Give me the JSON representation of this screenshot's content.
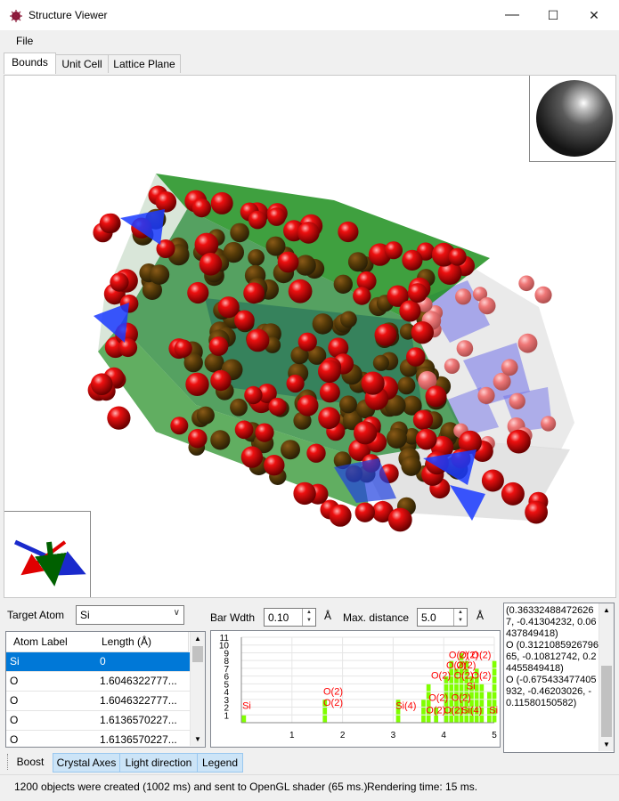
{
  "window": {
    "title": "Structure Viewer",
    "controls": {
      "minimize": "—",
      "maximize": "☐",
      "close": "✕"
    }
  },
  "menu": {
    "file": "File"
  },
  "tabs": [
    {
      "label": "Bounds",
      "active": true
    },
    {
      "label": "Unit Cell",
      "active": false
    },
    {
      "label": "Lattice Plane",
      "active": false
    }
  ],
  "controls": {
    "target_atom_label": "Target Atom",
    "target_atom_value": "Si",
    "bar_width_label": "Bar Wdth",
    "bar_width_value": "0.10",
    "bar_width_unit": "Å",
    "max_distance_label": "Max. distance",
    "max_distance_value": "5.0",
    "max_distance_unit": "Å"
  },
  "table": {
    "columns": [
      "Atom Label",
      "Length (Å)"
    ],
    "rows": [
      {
        "label": "Si",
        "length": "0",
        "selected": true
      },
      {
        "label": "O",
        "length": "1.6046322777...",
        "selected": false
      },
      {
        "label": "O",
        "length": "1.6046322777...",
        "selected": false
      },
      {
        "label": "O",
        "length": "1.6136570227...",
        "selected": false
      },
      {
        "label": "O",
        "length": "1.6136570227...",
        "selected": false
      }
    ]
  },
  "histogram": {
    "y_ticks": [
      "1",
      "2",
      "3",
      "4",
      "5",
      "6",
      "7",
      "8",
      "9",
      "10",
      "11"
    ],
    "x_ticks": [
      "1",
      "2",
      "3",
      "4",
      "5"
    ],
    "bar_color": "#80ff00",
    "label_color": "#ff0000",
    "labels": [
      {
        "text": "Si"
      },
      {
        "text": "O(2)"
      },
      {
        "text": "O(2)"
      },
      {
        "text": "Si(4)"
      },
      {
        "text": "O(2)"
      },
      {
        "text": "O(2)"
      },
      {
        "text": "O(2)"
      },
      {
        "text": "O(2)"
      },
      {
        "text": "O(2)"
      },
      {
        "text": "O(2)"
      },
      {
        "text": "O(2)"
      },
      {
        "text": "O(2)"
      },
      {
        "text": "O(2)"
      },
      {
        "text": "O(2)"
      },
      {
        "text": "Si(4)"
      },
      {
        "text": "Si"
      },
      {
        "text": "O(2)"
      },
      {
        "text": "O(2)"
      },
      {
        "text": "Si"
      }
    ]
  },
  "coordinates_text": "(0.363324884726267, -0.41304232, 0.06437849418)\nO (0.312108592679665, -0.10812742, 0.24455849418)\nO (-0.675433477405932, -0.46203026, -0.11580150582)",
  "toolbar": {
    "boost": "Boost",
    "crystal_axes": "Crystal Axes",
    "light_direction": "Light direction",
    "legend": "Legend"
  },
  "status": {
    "objects": "1200 objects were created (1002 ms) and sent to OpenGL shader (65 ms.)",
    "rendering": "Rendering time: 15 ms."
  }
}
